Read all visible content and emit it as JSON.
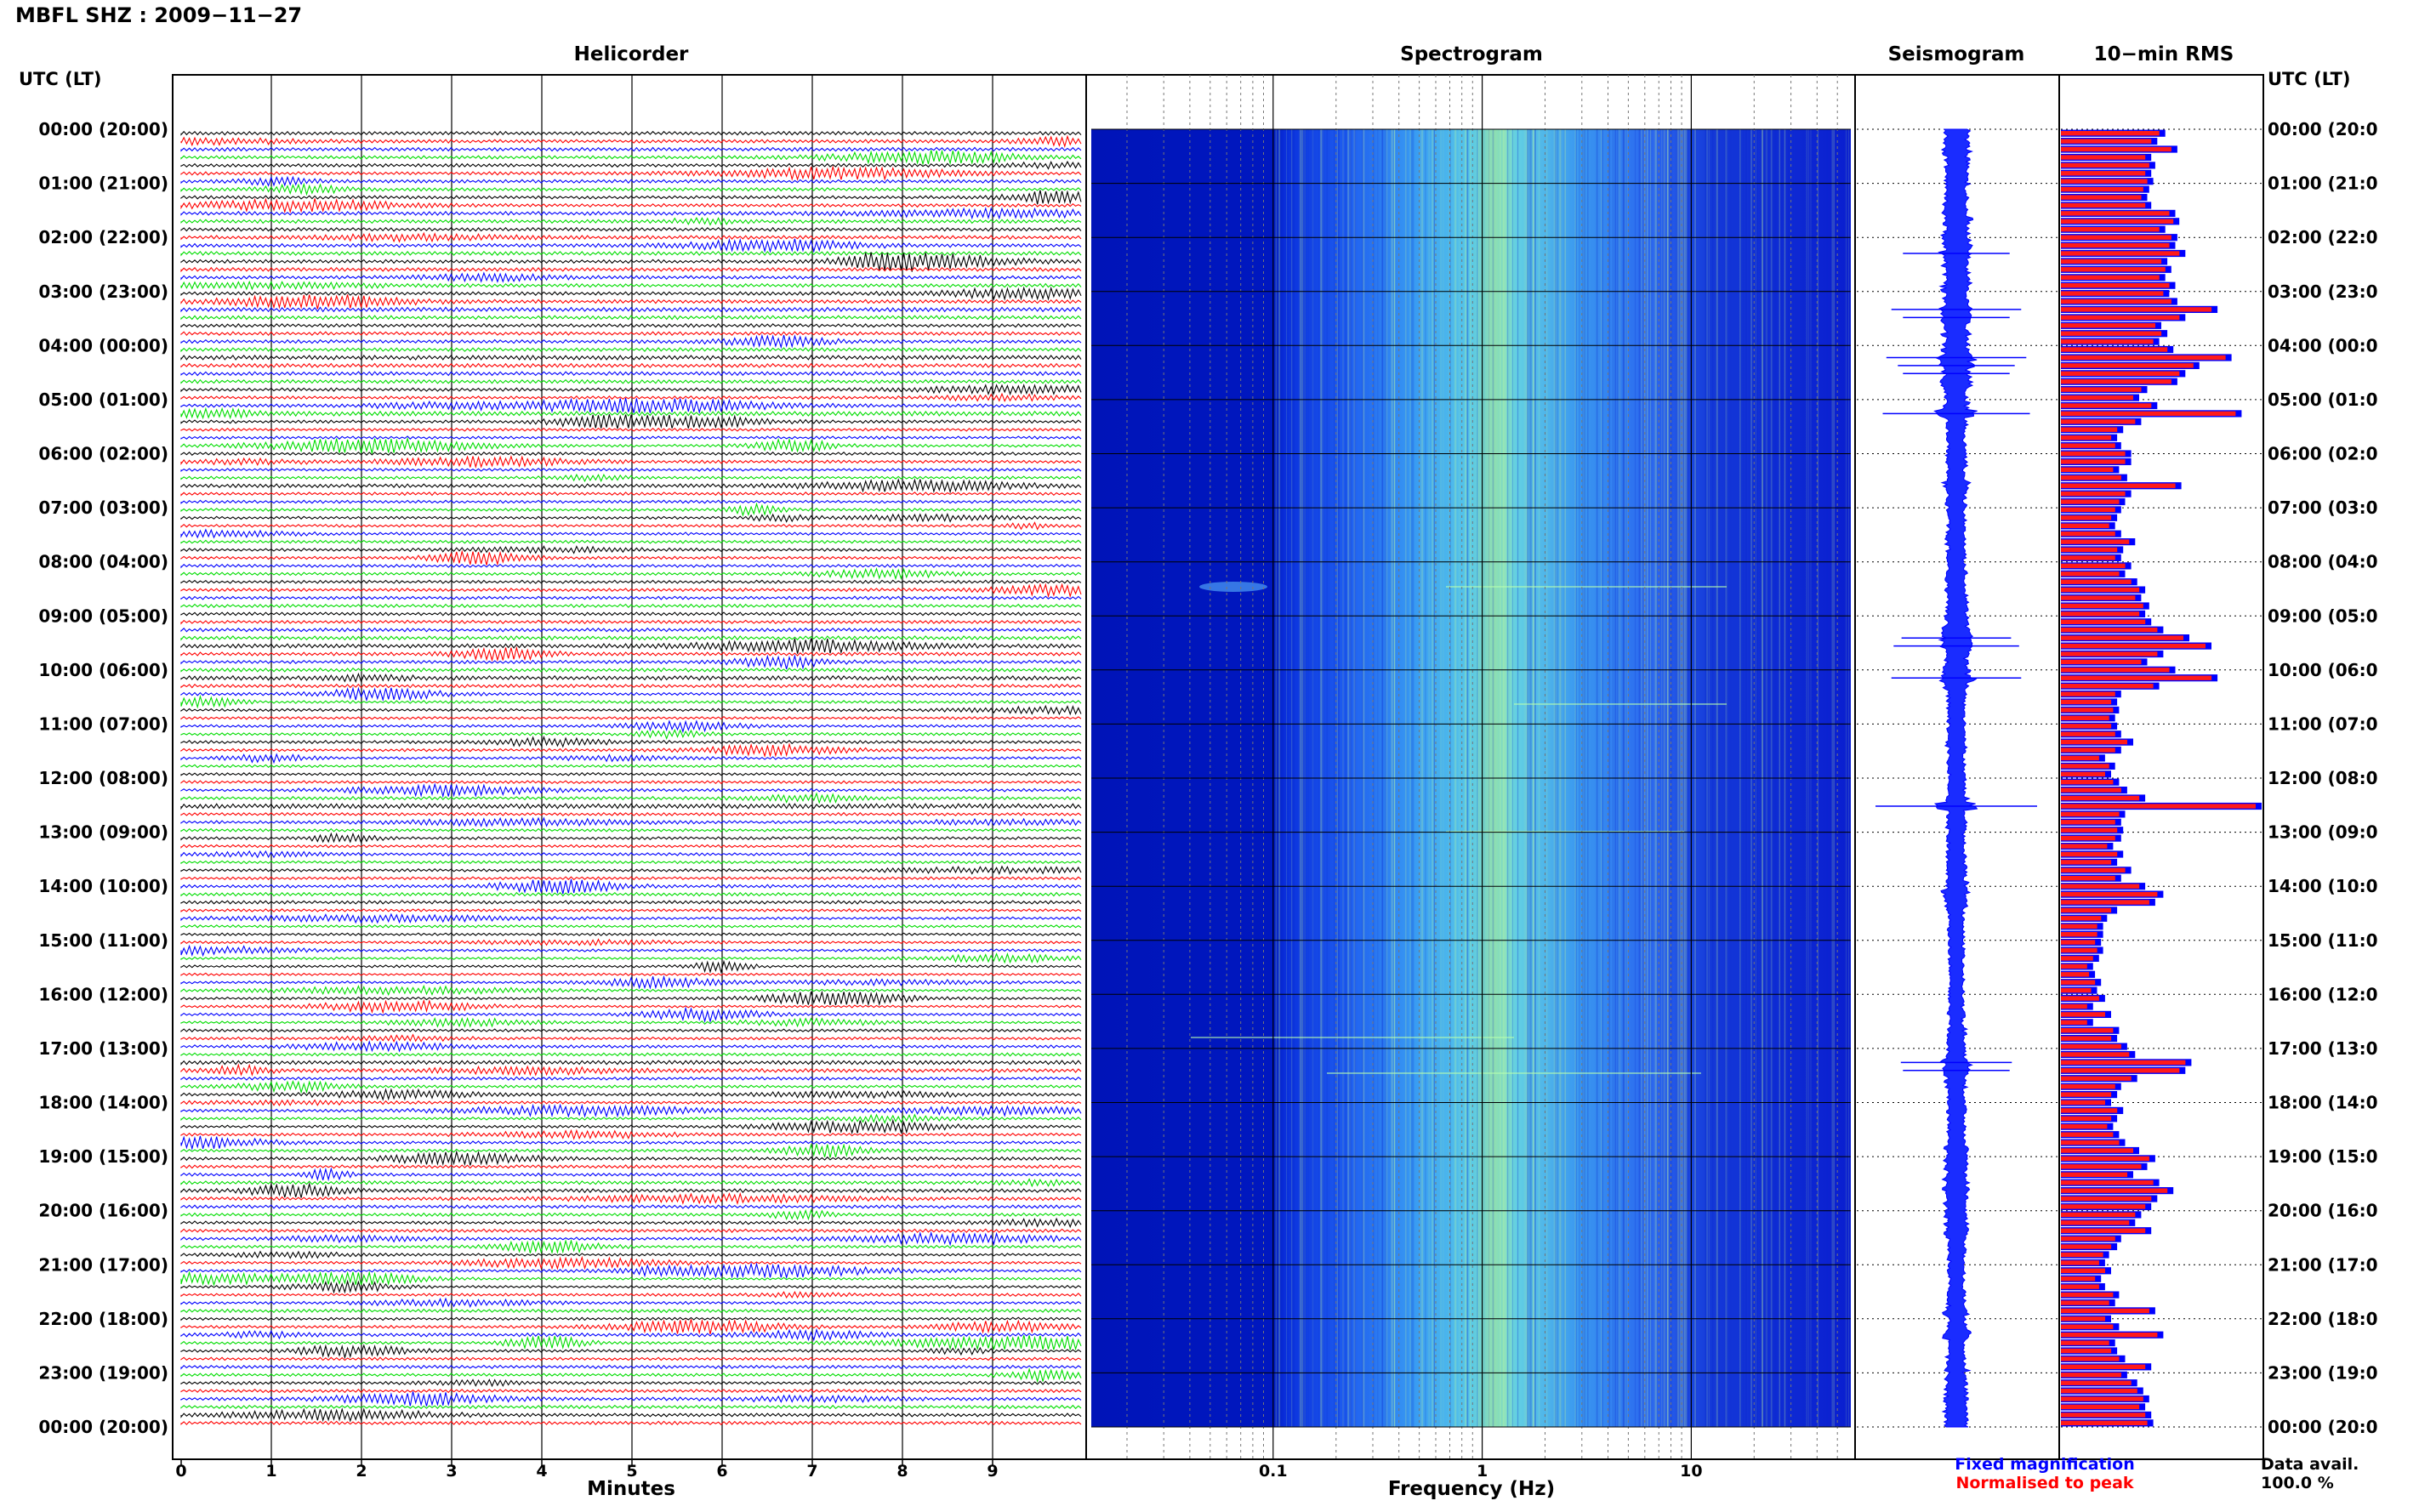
{
  "header": {
    "title": "MBFL SHZ : 2009−11−27",
    "left_axis_label": "UTC (LT)",
    "right_axis_label": "UTC (LT)"
  },
  "panels": {
    "helicorder": "Helicorder",
    "spectrogram": "Spectrogram",
    "seismogram": "Seismogram",
    "rms": "10−min RMS"
  },
  "helicorder_axis": {
    "label": "Minutes",
    "ticks": [
      "0",
      "1",
      "2",
      "3",
      "4",
      "5",
      "6",
      "7",
      "8",
      "9"
    ]
  },
  "spectrogram_axis": {
    "label": "Frequency (Hz)",
    "ticks": [
      "0.1",
      "1",
      "10"
    ]
  },
  "legend": {
    "fixed": "Fixed magnification",
    "normalised": "Normalised to peak",
    "fixed_color": "#0000ff",
    "normalised_color": "#ff0000"
  },
  "data_avail": {
    "label": "Data avail.",
    "value": "100.0 %"
  },
  "time_labels": [
    "00:00 (20:00)",
    "01:00 (21:00)",
    "02:00 (22:00)",
    "03:00 (23:00)",
    "04:00 (00:00)",
    "05:00 (01:00)",
    "06:00 (02:00)",
    "07:00 (03:00)",
    "08:00 (04:00)",
    "09:00 (05:00)",
    "10:00 (06:00)",
    "11:00 (07:00)",
    "12:00 (08:00)",
    "13:00 (09:00)",
    "14:00 (10:00)",
    "15:00 (11:00)",
    "16:00 (12:00)",
    "17:00 (13:00)",
    "18:00 (14:00)",
    "19:00 (15:00)",
    "20:00 (16:00)",
    "21:00 (17:00)",
    "22:00 (18:00)",
    "23:00 (19:00)",
    "00:00 (20:00)"
  ],
  "time_labels_right": [
    "00:00 (20:0",
    "01:00 (21:0",
    "02:00 (22:0",
    "03:00 (23:0",
    "04:00 (00:0",
    "05:00 (01:0",
    "06:00 (02:0",
    "07:00 (03:0",
    "08:00 (04:0",
    "09:00 (05:0",
    "10:00 (06:0",
    "11:00 (07:0",
    "12:00 (08:0",
    "13:00 (09:0",
    "14:00 (10:0",
    "15:00 (11:0",
    "16:00 (12:0",
    "17:00 (13:0",
    "18:00 (14:0",
    "19:00 (15:0",
    "20:00 (16:0",
    "21:00 (17:0",
    "22:00 (18:0",
    "23:00 (19:0",
    "00:00 (20:0"
  ],
  "chart_data": {
    "type": "bar",
    "title": "10−min RMS",
    "x_unit": "10-min interval of UTC day (0 = 00:00)",
    "trace_colors": [
      "#000000",
      "#ff0000",
      "#0000ff",
      "#00dd00"
    ],
    "values": [
      0.52,
      0.48,
      0.58,
      0.45,
      0.47,
      0.45,
      0.46,
      0.44,
      0.43,
      0.45,
      0.57,
      0.59,
      0.52,
      0.58,
      0.57,
      0.62,
      0.53,
      0.55,
      0.52,
      0.57,
      0.54,
      0.58,
      0.78,
      0.62,
      0.5,
      0.53,
      0.49,
      0.56,
      0.85,
      0.69,
      0.62,
      0.58,
      0.43,
      0.39,
      0.48,
      0.9,
      0.4,
      0.31,
      0.28,
      0.3,
      0.35,
      0.35,
      0.29,
      0.33,
      0.6,
      0.35,
      0.32,
      0.3,
      0.28,
      0.27,
      0.3,
      0.37,
      0.31,
      0.3,
      0.35,
      0.32,
      0.38,
      0.42,
      0.4,
      0.44,
      0.42,
      0.45,
      0.51,
      0.64,
      0.75,
      0.51,
      0.43,
      0.57,
      0.78,
      0.49,
      0.3,
      0.28,
      0.29,
      0.27,
      0.28,
      0.3,
      0.36,
      0.3,
      0.22,
      0.27,
      0.25,
      0.29,
      0.33,
      0.42,
      1.0,
      0.32,
      0.3,
      0.31,
      0.3,
      0.26,
      0.31,
      0.28,
      0.35,
      0.3,
      0.42,
      0.51,
      0.47,
      0.28,
      0.23,
      0.21,
      0.21,
      0.2,
      0.21,
      0.19,
      0.16,
      0.17,
      0.2,
      0.18,
      0.22,
      0.16,
      0.25,
      0.16,
      0.29,
      0.28,
      0.33,
      0.37,
      0.65,
      0.62,
      0.38,
      0.3,
      0.28,
      0.25,
      0.31,
      0.28,
      0.26,
      0.29,
      0.32,
      0.39,
      0.47,
      0.43,
      0.36,
      0.49,
      0.56,
      0.48,
      0.45,
      0.4,
      0.37,
      0.45,
      0.3,
      0.28,
      0.24,
      0.22,
      0.25,
      0.2,
      0.22,
      0.29,
      0.27,
      0.47,
      0.25,
      0.29,
      0.51,
      0.27,
      0.28,
      0.32,
      0.45,
      0.33,
      0.38,
      0.41,
      0.44,
      0.42,
      0.45,
      0.46
    ]
  }
}
